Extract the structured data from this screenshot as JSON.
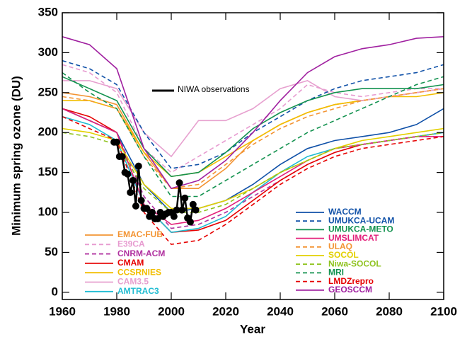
{
  "chart_data": {
    "type": "line",
    "xlabel": "Year",
    "ylabel": "Minimum spring ozone (DU)",
    "xlim": [
      1960,
      2100
    ],
    "ylim": [
      -9,
      350
    ],
    "xticks": [
      1960,
      1980,
      2000,
      2020,
      2040,
      2060,
      2080,
      2100
    ],
    "yticks": [
      0,
      50,
      100,
      150,
      200,
      250,
      300,
      350
    ],
    "x": [
      1960,
      1970,
      1980,
      1990,
      2000,
      2010,
      2020,
      2030,
      2040,
      2050,
      2060,
      2070,
      2080,
      2090,
      2100
    ],
    "series": [
      {
        "name": "EMAC-FUB",
        "color": "#f39433",
        "style": "solid",
        "values": [
          250,
          245,
          235,
          175,
          130,
          130,
          155,
          190,
          210,
          225,
          235,
          240,
          245,
          250,
          255
        ]
      },
      {
        "name": "E39CA",
        "color": "#e79bd0",
        "style": "dashed",
        "values": [
          285,
          275,
          250,
          180,
          150,
          170,
          190,
          210,
          230,
          260,
          250,
          245,
          250,
          255,
          255
        ]
      },
      {
        "name": "CNRM-ACM",
        "color": "#b0309f",
        "style": "dashed",
        "values": [
          230,
          215,
          200,
          120,
          80,
          85,
          100,
          120,
          140,
          160,
          175,
          185,
          190,
          195,
          195
        ]
      },
      {
        "name": "CMAM",
        "color": "#e60000",
        "style": "solid",
        "values": [
          230,
          220,
          200,
          110,
          75,
          78,
          90,
          115,
          140,
          160,
          175,
          185,
          190,
          195,
          200
        ]
      },
      {
        "name": "CCSRNIES",
        "color": "#f2be00",
        "style": "solid",
        "values": [
          240,
          240,
          230,
          175,
          145,
          150,
          170,
          190,
          210,
          225,
          235,
          240,
          245,
          245,
          250
        ]
      },
      {
        "name": "CAM3.5",
        "color": "#e7a0cf",
        "style": "solid",
        "values": [
          265,
          265,
          255,
          200,
          170,
          215,
          215,
          230,
          255,
          265,
          245,
          240,
          245,
          250,
          255
        ]
      },
      {
        "name": "AMTRAC3",
        "color": "#1fbcd2",
        "style": "solid",
        "values": [
          220,
          210,
          190,
          110,
          75,
          80,
          95,
          125,
          150,
          170,
          180,
          185,
          190,
          195,
          200
        ]
      },
      {
        "name": "WACCM",
        "color": "#1051a8",
        "style": "solid",
        "values": [
          230,
          215,
          200,
          135,
          100,
          105,
          115,
          135,
          160,
          180,
          190,
          195,
          200,
          210,
          230
        ]
      },
      {
        "name": "UMUKCA-UCAM",
        "color": "#1051a8",
        "style": "dashed",
        "values": [
          290,
          280,
          260,
          200,
          155,
          160,
          175,
          200,
          220,
          240,
          255,
          265,
          270,
          275,
          285
        ]
      },
      {
        "name": "UMUKCA-METO",
        "color": "#13924f",
        "style": "solid",
        "values": [
          270,
          255,
          240,
          180,
          145,
          150,
          175,
          205,
          225,
          240,
          250,
          255,
          255,
          255,
          260
        ]
      },
      {
        "name": "UMSLIMCAT",
        "color": "#e3207a",
        "style": "solid",
        "values": [
          230,
          215,
          200,
          110,
          85,
          90,
          105,
          125,
          145,
          165,
          180,
          185,
          190,
          195,
          195
        ]
      },
      {
        "name": "ULAQ",
        "color": "#f39433",
        "style": "dashed",
        "values": [
          245,
          240,
          230,
          170,
          130,
          135,
          160,
          185,
          205,
          220,
          230,
          240,
          245,
          250,
          255
        ]
      },
      {
        "name": "SOCOL",
        "color": "#e3d000",
        "style": "solid",
        "values": [
          205,
          200,
          190,
          135,
          105,
          105,
          115,
          130,
          150,
          165,
          180,
          190,
          195,
          200,
          205
        ]
      },
      {
        "name": "Niwa-SOCOL",
        "color": "#8fc31f",
        "style": "dashed",
        "values": [
          200,
          195,
          185,
          130,
          100,
          100,
          110,
          130,
          150,
          165,
          180,
          185,
          190,
          195,
          200
        ]
      },
      {
        "name": "MRI",
        "color": "#13924f",
        "style": "dashed",
        "values": [
          275,
          250,
          230,
          170,
          120,
          120,
          140,
          160,
          180,
          200,
          215,
          230,
          245,
          260,
          270
        ]
      },
      {
        "name": "LMDZrepro",
        "color": "#e60000",
        "style": "dashed",
        "values": [
          220,
          205,
          190,
          100,
          60,
          65,
          85,
          110,
          135,
          155,
          170,
          180,
          185,
          190,
          195
        ]
      },
      {
        "name": "GEOSCCM",
        "color": "#a020a0",
        "style": "solid",
        "values": [
          320,
          310,
          280,
          180,
          130,
          140,
          165,
          200,
          240,
          275,
          295,
          305,
          310,
          318,
          320
        ]
      }
    ],
    "observations": {
      "name": "NIWA observations",
      "color": "#000000",
      "x": [
        1979,
        1980,
        1981,
        1982,
        1983,
        1984,
        1985,
        1986,
        1987,
        1988,
        1989,
        1990,
        1991,
        1992,
        1993,
        1994,
        1995,
        1996,
        1997,
        1998,
        1999,
        2000,
        2001,
        2002,
        2003,
        2004,
        2005,
        2006,
        2007,
        2008,
        2009
      ],
      "values": [
        188,
        188,
        170,
        170,
        150,
        148,
        125,
        140,
        108,
        158,
        115,
        105,
        105,
        95,
        100,
        92,
        92,
        100,
        95,
        98,
        100,
        100,
        95,
        103,
        137,
        103,
        118,
        93,
        88,
        110,
        103
      ]
    }
  }
}
